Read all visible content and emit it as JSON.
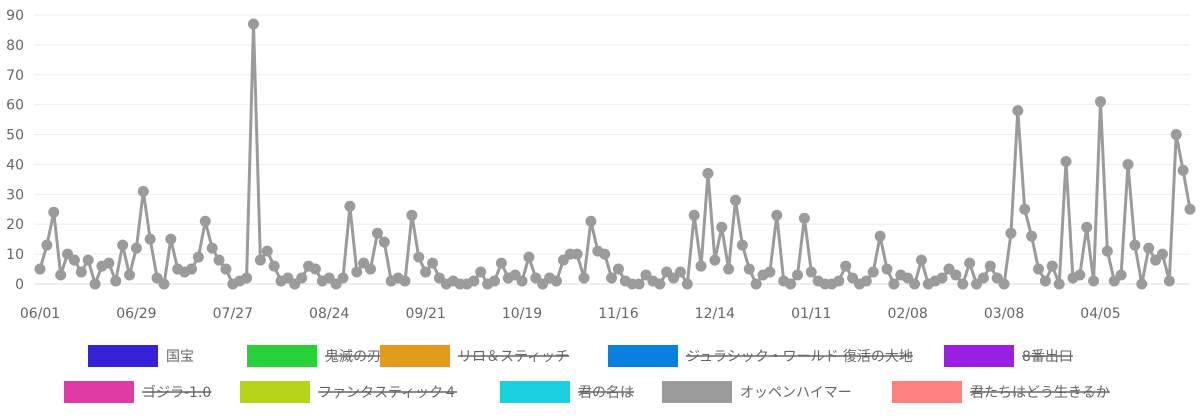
{
  "chart_data": {
    "type": "line",
    "y_axis": {
      "min": 0,
      "max": 90,
      "step": 10,
      "ticks": [
        "0",
        "10",
        "20",
        "30",
        "40",
        "50",
        "60",
        "70",
        "80",
        "90"
      ]
    },
    "x_axis": {
      "tick_labels": [
        "06/01",
        "06/29",
        "07/27",
        "08/24",
        "09/21",
        "10/19",
        "11/16",
        "12/14",
        "01/11",
        "02/08",
        "03/08",
        "04/05"
      ],
      "tick_index": [
        0,
        28,
        56,
        84,
        112,
        140,
        168,
        196,
        224,
        252,
        280,
        308
      ],
      "count": 335
    },
    "grid": true,
    "legend": {
      "position": "bottom",
      "items": [
        {
          "name": "国宝",
          "color": "#3522d6",
          "hidden": false
        },
        {
          "name": "鬼滅の刃",
          "color": "#28d23a",
          "hidden": true
        },
        {
          "name": "リロ＆スティッチ",
          "color": "#e39b1e",
          "hidden": true
        },
        {
          "name": "ジュラシック・ワールド 復活の大地",
          "color": "#0880dd",
          "hidden": true
        },
        {
          "name": "8番出口",
          "color": "#9a20e0",
          "hidden": true
        },
        {
          "name": "ゴジラ-1.0",
          "color": "#e03aa5",
          "hidden": true
        },
        {
          "name": "ファンタスティック４",
          "color": "#b8d31c",
          "hidden": true
        },
        {
          "name": "君の名は",
          "color": "#1ccfdf",
          "hidden": true
        },
        {
          "name": "オッペンハイマー",
          "color": "#9b9b9b",
          "hidden": false
        },
        {
          "name": "君たちはどう生きるか",
          "color": "#ff8080",
          "hidden": true
        }
      ]
    },
    "series": [
      {
        "name": "オッペンハイマー",
        "color": "#9b9b9b",
        "points": [
          [
            0,
            5
          ],
          [
            2,
            13
          ],
          [
            4,
            24
          ],
          [
            6,
            3
          ],
          [
            8,
            10
          ],
          [
            10,
            8
          ],
          [
            12,
            4
          ],
          [
            14,
            8
          ],
          [
            16,
            0
          ],
          [
            18,
            6
          ],
          [
            20,
            7
          ],
          [
            22,
            1
          ],
          [
            24,
            13
          ],
          [
            26,
            3
          ],
          [
            28,
            12
          ],
          [
            30,
            31
          ],
          [
            32,
            15
          ],
          [
            34,
            2
          ],
          [
            36,
            0
          ],
          [
            38,
            15
          ],
          [
            40,
            5
          ],
          [
            42,
            4
          ],
          [
            44,
            5
          ],
          [
            46,
            9
          ],
          [
            48,
            21
          ],
          [
            50,
            12
          ],
          [
            52,
            8
          ],
          [
            54,
            5
          ],
          [
            56,
            0
          ],
          [
            58,
            1
          ],
          [
            60,
            2
          ],
          [
            62,
            87
          ],
          [
            64,
            8
          ],
          [
            66,
            11
          ],
          [
            68,
            6
          ],
          [
            70,
            1
          ],
          [
            72,
            2
          ],
          [
            74,
            0
          ],
          [
            76,
            2
          ],
          [
            78,
            6
          ],
          [
            80,
            5
          ],
          [
            82,
            1
          ],
          [
            84,
            2
          ],
          [
            86,
            0
          ],
          [
            88,
            2
          ],
          [
            90,
            26
          ],
          [
            92,
            4
          ],
          [
            94,
            7
          ],
          [
            96,
            5
          ],
          [
            98,
            17
          ],
          [
            100,
            14
          ],
          [
            102,
            1
          ],
          [
            104,
            2
          ],
          [
            106,
            1
          ],
          [
            108,
            23
          ],
          [
            110,
            9
          ],
          [
            112,
            4
          ],
          [
            114,
            7
          ],
          [
            116,
            2
          ],
          [
            118,
            0
          ],
          [
            120,
            1
          ],
          [
            122,
            0
          ],
          [
            124,
            0
          ],
          [
            126,
            1
          ],
          [
            128,
            4
          ],
          [
            130,
            0
          ],
          [
            132,
            1
          ],
          [
            134,
            7
          ],
          [
            136,
            2
          ],
          [
            138,
            3
          ],
          [
            140,
            1
          ],
          [
            142,
            9
          ],
          [
            144,
            2
          ],
          [
            146,
            0
          ],
          [
            148,
            2
          ],
          [
            150,
            1
          ],
          [
            152,
            8
          ],
          [
            154,
            10
          ],
          [
            156,
            10
          ],
          [
            158,
            2
          ],
          [
            160,
            21
          ],
          [
            162,
            11
          ],
          [
            164,
            10
          ],
          [
            166,
            2
          ],
          [
            168,
            5
          ],
          [
            170,
            1
          ],
          [
            172,
            0
          ],
          [
            174,
            0
          ],
          [
            176,
            3
          ],
          [
            178,
            1
          ],
          [
            180,
            0
          ],
          [
            182,
            4
          ],
          [
            184,
            2
          ],
          [
            186,
            4
          ],
          [
            188,
            0
          ],
          [
            190,
            23
          ],
          [
            192,
            6
          ],
          [
            194,
            37
          ],
          [
            196,
            8
          ],
          [
            198,
            19
          ],
          [
            200,
            5
          ],
          [
            202,
            28
          ],
          [
            204,
            13
          ],
          [
            206,
            5
          ],
          [
            208,
            0
          ],
          [
            210,
            3
          ],
          [
            212,
            4
          ],
          [
            214,
            23
          ],
          [
            216,
            1
          ],
          [
            218,
            0
          ],
          [
            220,
            3
          ],
          [
            222,
            22
          ],
          [
            224,
            4
          ],
          [
            226,
            1
          ],
          [
            228,
            0
          ],
          [
            230,
            0
          ],
          [
            232,
            1
          ],
          [
            234,
            6
          ],
          [
            236,
            2
          ],
          [
            238,
            0
          ],
          [
            240,
            1
          ],
          [
            242,
            4
          ],
          [
            244,
            16
          ],
          [
            246,
            5
          ],
          [
            248,
            0
          ],
          [
            250,
            3
          ],
          [
            252,
            2
          ],
          [
            254,
            0
          ],
          [
            256,
            8
          ],
          [
            258,
            0
          ],
          [
            260,
            1
          ],
          [
            262,
            2
          ],
          [
            264,
            5
          ],
          [
            266,
            3
          ],
          [
            268,
            0
          ],
          [
            270,
            7
          ],
          [
            272,
            0
          ],
          [
            274,
            2
          ],
          [
            276,
            6
          ],
          [
            278,
            2
          ],
          [
            280,
            0
          ],
          [
            282,
            17
          ],
          [
            284,
            58
          ],
          [
            286,
            25
          ],
          [
            288,
            16
          ],
          [
            290,
            5
          ],
          [
            292,
            1
          ],
          [
            294,
            6
          ],
          [
            296,
            0
          ],
          [
            298,
            41
          ],
          [
            300,
            2
          ],
          [
            302,
            3
          ],
          [
            304,
            19
          ],
          [
            306,
            1
          ],
          [
            308,
            61
          ],
          [
            310,
            11
          ],
          [
            312,
            1
          ],
          [
            314,
            3
          ],
          [
            316,
            40
          ],
          [
            318,
            13
          ],
          [
            320,
            0
          ],
          [
            322,
            12
          ],
          [
            324,
            8
          ],
          [
            326,
            10
          ],
          [
            328,
            1
          ],
          [
            330,
            50
          ],
          [
            332,
            38
          ],
          [
            334,
            25
          ]
        ]
      }
    ]
  }
}
